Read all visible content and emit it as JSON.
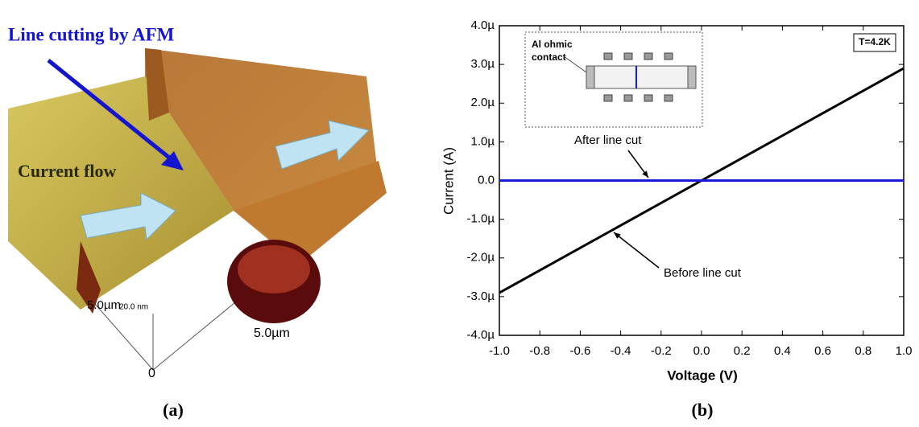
{
  "afm_image": {
    "annotations": [
      "Line cutting by AFM",
      "Current flow"
    ],
    "axis_labels": [
      "5.0µm",
      "20.0 nm",
      "5.0µm",
      "0"
    ],
    "caption": "(a)"
  },
  "chart_data": {
    "type": "line",
    "caption": "(b)",
    "xlabel": "Voltage (V)",
    "ylabel": "Current (A)",
    "x": [
      -1,
      1
    ],
    "series": [
      {
        "name": "Before line cut",
        "color": "#000000",
        "values": [
          -2.9e-06,
          2.9e-06
        ]
      },
      {
        "name": "After line cut",
        "color": "#1a1adc",
        "values": [
          0,
          0
        ]
      }
    ],
    "xlim": [
      -1,
      1
    ],
    "xticks": [
      {
        "value": -1,
        "label": "-1.0"
      },
      {
        "value": -0.8,
        "label": "-0.8"
      },
      {
        "value": -0.6,
        "label": "-0.6"
      },
      {
        "value": -0.4,
        "label": "-0.4"
      },
      {
        "value": -0.2,
        "label": "-0.2"
      },
      {
        "value": 0,
        "label": "0.0"
      },
      {
        "value": 0.2,
        "label": "0.2"
      },
      {
        "value": 0.4,
        "label": "0.4"
      },
      {
        "value": 0.6,
        "label": "0.6"
      },
      {
        "value": 0.8,
        "label": "0.8"
      },
      {
        "value": 1,
        "label": "1.0"
      }
    ],
    "ylim": [
      -4e-06,
      4e-06
    ],
    "yticks": [
      {
        "value": -4e-06,
        "label": "-4.0µ"
      },
      {
        "value": -3e-06,
        "label": "-3.0µ"
      },
      {
        "value": -2e-06,
        "label": "-2.0µ"
      },
      {
        "value": -1e-06,
        "label": "-1.0µ"
      },
      {
        "value": 0,
        "label": "0.0"
      },
      {
        "value": 1e-06,
        "label": "1.0µ"
      },
      {
        "value": 2e-06,
        "label": "2.0µ"
      },
      {
        "value": 3e-06,
        "label": "3.0µ"
      },
      {
        "value": 4e-06,
        "label": "4.0µ"
      }
    ],
    "grid": false,
    "inset_label": [
      "Al ohmic",
      "contact"
    ],
    "temperature_label": "T=4.2K"
  }
}
